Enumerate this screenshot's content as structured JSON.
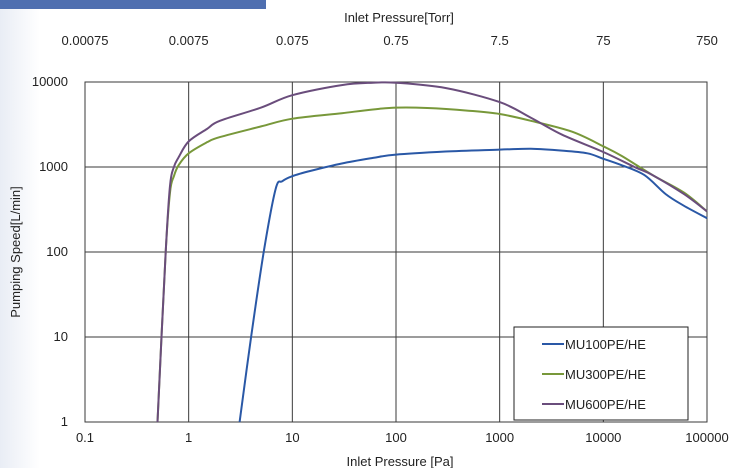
{
  "colors": {
    "accent": "#4f6fb0",
    "grid": "#3a3a3a",
    "series": [
      "#2a58a6",
      "#78983a",
      "#6a4d7c"
    ]
  },
  "chart_data": {
    "type": "line",
    "title": "",
    "xlabel": "Inlet Pressure [Pa]",
    "ylabel": "Pumping Speed[L/min]",
    "x2label": "Inlet Pressure[Torr]",
    "xscale": "log",
    "yscale": "log",
    "xlim": [
      0.1,
      100000
    ],
    "ylim": [
      1,
      10000
    ],
    "x_ticks": [
      0.1,
      1,
      10,
      100,
      1000,
      10000,
      100000
    ],
    "x_tick_labels": [
      "0.1",
      "1",
      "10",
      "100",
      "1000",
      "10000",
      "100000"
    ],
    "y_ticks": [
      1,
      10,
      100,
      1000,
      10000
    ],
    "y_tick_labels": [
      "1",
      "10",
      "100",
      "1000",
      "10000"
    ],
    "x2_tick_labels": [
      "0.00075",
      "0.0075",
      "0.075",
      "0.75",
      "7.5",
      "75",
      "750"
    ],
    "grid": true,
    "legend_position": "bottom-right",
    "series": [
      {
        "name": "MU100PE/HE",
        "points": [
          [
            3.1,
            1
          ],
          [
            4,
            10
          ],
          [
            5.3,
            100
          ],
          [
            6.9,
            550
          ],
          [
            8,
            680
          ],
          [
            10,
            780
          ],
          [
            15,
            900
          ],
          [
            30,
            1100
          ],
          [
            60,
            1280
          ],
          [
            100,
            1400
          ],
          [
            300,
            1520
          ],
          [
            1000,
            1600
          ],
          [
            2000,
            1640
          ],
          [
            4000,
            1560
          ],
          [
            7000,
            1450
          ],
          [
            10000,
            1250
          ],
          [
            15000,
            1050
          ],
          [
            25000,
            800
          ],
          [
            40000,
            480
          ],
          [
            60000,
            350
          ],
          [
            100000,
            250
          ]
        ]
      },
      {
        "name": "MU300PE/HE",
        "points": [
          [
            0.5,
            1
          ],
          [
            0.6,
            100
          ],
          [
            0.66,
            500
          ],
          [
            0.72,
            780
          ],
          [
            0.8,
            1050
          ],
          [
            1,
            1450
          ],
          [
            1.5,
            1950
          ],
          [
            2,
            2250
          ],
          [
            5,
            3000
          ],
          [
            10,
            3700
          ],
          [
            30,
            4300
          ],
          [
            60,
            4750
          ],
          [
            100,
            5000
          ],
          [
            200,
            4950
          ],
          [
            500,
            4600
          ],
          [
            1000,
            4200
          ],
          [
            2000,
            3500
          ],
          [
            5000,
            2600
          ],
          [
            10000,
            1750
          ],
          [
            15000,
            1350
          ],
          [
            30000,
            800
          ],
          [
            60000,
            500
          ],
          [
            100000,
            300
          ]
        ]
      },
      {
        "name": "MU600PE/HE",
        "points": [
          [
            0.5,
            1
          ],
          [
            0.6,
            100
          ],
          [
            0.66,
            600
          ],
          [
            0.72,
            1000
          ],
          [
            0.8,
            1300
          ],
          [
            1,
            2000
          ],
          [
            1.5,
            2800
          ],
          [
            2,
            3500
          ],
          [
            5,
            5000
          ],
          [
            10,
            7000
          ],
          [
            30,
            9200
          ],
          [
            60,
            9800
          ],
          [
            100,
            9800
          ],
          [
            300,
            8500
          ],
          [
            1000,
            5800
          ],
          [
            2000,
            3800
          ],
          [
            4000,
            2400
          ],
          [
            10000,
            1500
          ],
          [
            20000,
            1000
          ],
          [
            30000,
            800
          ],
          [
            60000,
            480
          ],
          [
            100000,
            300
          ]
        ]
      }
    ]
  }
}
